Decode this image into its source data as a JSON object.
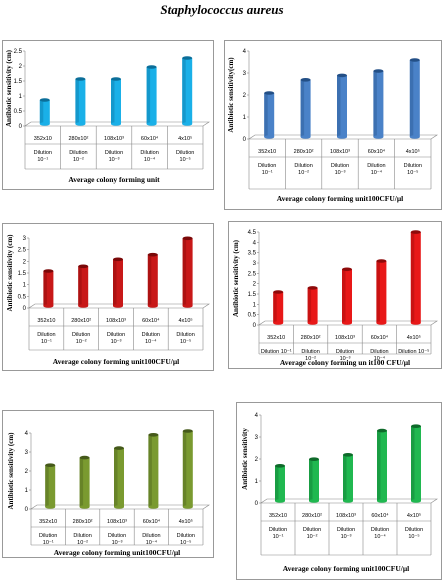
{
  "title": "Staphylococcus  aureus",
  "chart_data": [
    {
      "type": "bar",
      "ylabel": "Antibiotic sensitivity (cm)",
      "xlabel": "Average colony forming unit",
      "ylim": [
        0,
        2.5
      ],
      "yticks": [
        "0",
        "0.5",
        "1",
        "1.5",
        "2",
        "2.5"
      ],
      "categories": [
        "352x10",
        "280x10²",
        "108x10³",
        "60x10⁴",
        "4x10⁵"
      ],
      "dilutions": [
        [
          "Dilution",
          "10⁻¹"
        ],
        [
          "Dilution",
          "10⁻²"
        ],
        [
          "Dilution",
          "10⁻³"
        ],
        [
          "Dilution",
          "10⁻⁴"
        ],
        [
          "Dilution",
          "10⁻⁵"
        ]
      ],
      "values": [
        0.8,
        1.5,
        1.5,
        1.9,
        2.2
      ],
      "color": "#1ab0e8",
      "dark": "#0b6e99"
    },
    {
      "type": "bar",
      "ylabel": "Antibiotic sensitivity(cm)",
      "xlabel": "Average colony forming unit100CFU/µl",
      "ylim": [
        0,
        4
      ],
      "yticks": [
        "0",
        "1",
        "2",
        "3",
        "4"
      ],
      "categories": [
        "352x10",
        "280x10²",
        "108x10³",
        "60x10⁴",
        "4x10⁵"
      ],
      "dilutions": [
        [
          "Dilution",
          "10⁻¹"
        ],
        [
          "Dilution",
          "10⁻²"
        ],
        [
          "Dilution",
          "10⁻³"
        ],
        [
          "Dilution",
          "10⁻⁴"
        ],
        [
          "Dilution",
          "10⁻⁵"
        ]
      ],
      "values": [
        2.0,
        2.6,
        2.8,
        3.0,
        3.5
      ],
      "color": "#4a82c8",
      "dark": "#234f86"
    },
    {
      "type": "bar",
      "ylabel": "Antibiotic sensitivity (cm)",
      "xlabel": "Average colony forming unit100CFU/µl",
      "ylim": [
        0,
        3
      ],
      "yticks": [
        "0",
        "0.5",
        "1",
        "1.5",
        "2",
        "2.5",
        "3"
      ],
      "categories": [
        "352x10",
        "280x10²",
        "108x10³",
        "60x10⁴",
        "4x10⁵"
      ],
      "dilutions": [
        [
          "Dilution",
          "10⁻¹"
        ],
        [
          "Dilution",
          "10⁻²"
        ],
        [
          "Dilution",
          "10⁻³"
        ],
        [
          "Dilution",
          "10⁻⁴"
        ],
        [
          "Dilution",
          "10⁻⁵"
        ]
      ],
      "values": [
        1.5,
        1.7,
        2.0,
        2.2,
        2.9
      ],
      "color": "#c81818",
      "dark": "#7a0808"
    },
    {
      "type": "bar",
      "ylabel": "Antibiotic sensitivity (cm)",
      "xlabel": "Average colony forming un it100 CFU/µl",
      "ylim": [
        0,
        4.5
      ],
      "yticks": [
        "0",
        "0.5",
        "1",
        "1.5",
        "2",
        "2.5",
        "3",
        "3.5",
        "4",
        "4.5"
      ],
      "categories": [
        "352x10",
        "280x10²",
        "108x10³",
        "60x10⁴",
        "4x10⁵"
      ],
      "dilutions": [
        [
          "Dilution 10⁻¹"
        ],
        [
          "Dilution",
          "10⁻²"
        ],
        [
          "Dilution",
          "10⁻³"
        ],
        [
          "Dilution",
          "10⁻⁴"
        ],
        [
          "Dilution 10⁻⁵"
        ]
      ],
      "values": [
        1.5,
        1.7,
        2.6,
        3.0,
        4.4
      ],
      "color": "#e81818",
      "dark": "#8e0a0a"
    },
    {
      "type": "bar",
      "ylabel": "Antibiotic sensitivity (cm)",
      "xlabel": "Average colony forming unit100CFU/µl",
      "ylim": [
        0,
        4
      ],
      "yticks": [
        "0",
        "1",
        "2",
        "3",
        "4"
      ],
      "categories": [
        "352x10",
        "280x10²",
        "108x10³",
        "60x10⁴",
        "4x10⁵"
      ],
      "dilutions": [
        [
          "Dilution",
          "10⁻¹"
        ],
        [
          "Dilution",
          "10⁻²"
        ],
        [
          "Dilution",
          "10⁻³"
        ],
        [
          "Dilution",
          "10⁻⁴"
        ],
        [
          "Dilution",
          "10⁻⁵"
        ]
      ],
      "values": [
        2.2,
        2.6,
        3.1,
        3.8,
        4.0
      ],
      "color": "#7a9a30",
      "dark": "#45591a"
    },
    {
      "type": "bar",
      "ylabel": "Antibiotic  sensitivity",
      "xlabel": "Average colony forming  unit100CFU/µl",
      "ylim": [
        0,
        4
      ],
      "yticks": [
        "0",
        "1",
        "2",
        "3",
        "4"
      ],
      "categories": [
        "352x10",
        "280x10²",
        "108x10³",
        "60x10⁴",
        "4x10⁵"
      ],
      "dilutions": [
        [
          "Dilution",
          "10⁻¹"
        ],
        [
          "Dilution",
          "10⁻²"
        ],
        [
          "Dilution",
          "10⁻³"
        ],
        [
          "Dilution",
          "10⁻⁴"
        ],
        [
          "Dilution",
          "10⁻⁵"
        ]
      ],
      "values": [
        1.6,
        1.9,
        2.1,
        3.2,
        3.4
      ],
      "color": "#20b850",
      "dark": "#0e6a2a"
    }
  ]
}
